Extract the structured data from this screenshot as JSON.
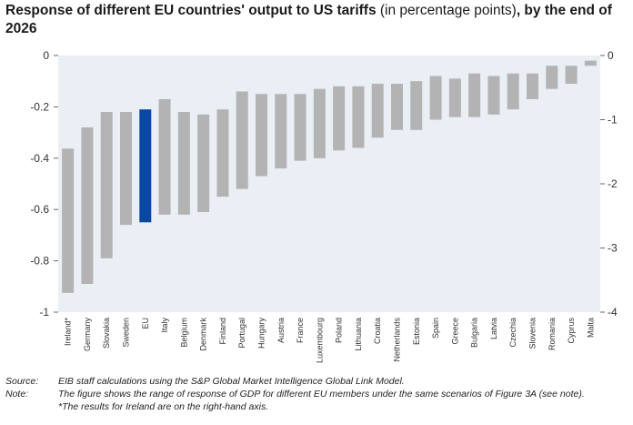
{
  "title": {
    "bold_part_1": "Response of different EU countries' output to US tariffs",
    "light_part": " (in percentage points)",
    "bold_part_2": ", by the end of 2026"
  },
  "colors": {
    "bar": "#b3b3b3",
    "highlight": "#0a47a3",
    "plot_bg": "#eaeef5"
  },
  "chart_data": {
    "type": "bar",
    "title": "Response of different EU countries' output to US tariffs (in percentage points), by the end of 2026",
    "categories": [
      "Ireland*",
      "Germany",
      "Slovakia",
      "Sweden",
      "EU",
      "Italy",
      "Belgium",
      "Denmark",
      "Finland",
      "Portugal",
      "Hungary",
      "Austria",
      "France",
      "Luxembourg",
      "Poland",
      "Lithuania",
      "Croatia",
      "Netherlands",
      "Estonia",
      "Spain",
      "Greece",
      "Bulgaria",
      "Latvia",
      "Czechia",
      "Slovenia",
      "Romania",
      "Cyprus",
      "Malta"
    ],
    "ranges": [
      [
        -3.7,
        -1.45
      ],
      [
        -0.89,
        -0.28
      ],
      [
        -0.79,
        -0.22
      ],
      [
        -0.66,
        -0.22
      ],
      [
        -0.65,
        -0.21
      ],
      [
        -0.62,
        -0.17
      ],
      [
        -0.62,
        -0.22
      ],
      [
        -0.61,
        -0.23
      ],
      [
        -0.55,
        -0.21
      ],
      [
        -0.52,
        -0.14
      ],
      [
        -0.47,
        -0.15
      ],
      [
        -0.44,
        -0.15
      ],
      [
        -0.41,
        -0.15
      ],
      [
        -0.4,
        -0.13
      ],
      [
        -0.37,
        -0.12
      ],
      [
        -0.36,
        -0.12
      ],
      [
        -0.32,
        -0.11
      ],
      [
        -0.29,
        -0.11
      ],
      [
        -0.29,
        -0.1
      ],
      [
        -0.25,
        -0.08
      ],
      [
        -0.24,
        -0.09
      ],
      [
        -0.24,
        -0.07
      ],
      [
        -0.23,
        -0.08
      ],
      [
        -0.21,
        -0.07
      ],
      [
        -0.17,
        -0.07
      ],
      [
        -0.13,
        -0.04
      ],
      [
        -0.11,
        -0.04
      ],
      [
        -0.04,
        -0.02
      ]
    ],
    "highlight": "EU",
    "right_axis_categories": [
      "Ireland*"
    ],
    "left_axis": {
      "ylim": [
        -1,
        0
      ],
      "ticks": [
        -1,
        -0.8,
        -0.6,
        -0.4,
        -0.2,
        0
      ],
      "tick_labels": [
        "-1",
        "-0.8",
        "-0.6",
        "-0.4",
        "-0.2",
        "0"
      ]
    },
    "right_axis": {
      "ylim": [
        -4,
        0
      ],
      "ticks": [
        -4,
        -3,
        -2,
        -1,
        0
      ],
      "tick_labels": [
        "-4",
        "-3",
        "-2",
        "-1",
        "0"
      ]
    },
    "xlabel": "",
    "ylabel": "",
    "grid": false
  },
  "notes": {
    "source_label": "Source:",
    "source_text": "EIB staff calculations using the S&P Global Market Intelligence Global Link Model.",
    "note_label": "Note:",
    "note_text": "The figure shows the range of response of GDP for different EU members under the same scenarios of Figure 3A (see note).",
    "footnote": "*The results for Ireland are on the right-hand axis."
  }
}
